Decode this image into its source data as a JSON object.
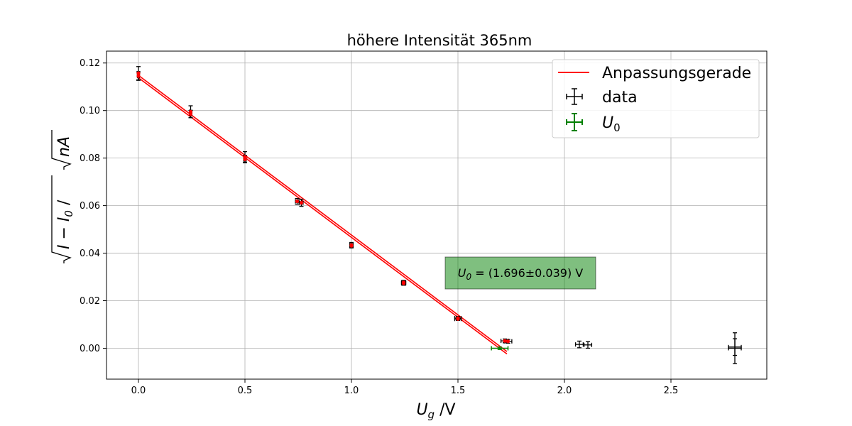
{
  "chart_data": {
    "type": "scatter",
    "title": "höhere Intensität 365nm",
    "xlabel_main": "U",
    "xlabel_sub": "g",
    "xlabel_unit": " /V",
    "ylabel": "√(I − I₀) /√nA",
    "ylabel_i": "I",
    "ylabel_minus": " − ",
    "ylabel_sub": "0",
    "ylabel_unit": " /",
    "ylabel_nA": "nA",
    "xlim": [
      -0.15,
      2.95
    ],
    "ylim": [
      -0.013,
      0.125
    ],
    "xticks": [
      0.0,
      0.5,
      1.0,
      1.5,
      2.0,
      2.5
    ],
    "xtick_labels": [
      "0.0",
      "0.5",
      "1.0",
      "1.5",
      "2.0",
      "2.5"
    ],
    "yticks": [
      0.0,
      0.02,
      0.04,
      0.06,
      0.08,
      0.1,
      0.12
    ],
    "ytick_labels": [
      "0.00",
      "0.02",
      "0.04",
      "0.06",
      "0.08",
      "0.10",
      "0.12"
    ],
    "grid": true,
    "legend_position": "top-right",
    "series": [
      {
        "name": "data",
        "kind": "errorbar",
        "color": "#000000",
        "points": [
          {
            "x": 0.0,
            "y": 0.1157,
            "xerr": 0.005,
            "yerr": 0.0028
          },
          {
            "x": 0.0,
            "y": 0.1145,
            "xerr": 0.005,
            "yerr": 0.0018
          },
          {
            "x": 0.245,
            "y": 0.0995,
            "xerr": 0.006,
            "yerr": 0.0025
          },
          {
            "x": 0.245,
            "y": 0.0985,
            "xerr": 0.006,
            "yerr": 0.0015
          },
          {
            "x": 0.5,
            "y": 0.0805,
            "xerr": 0.006,
            "yerr": 0.0022
          },
          {
            "x": 0.5,
            "y": 0.0795,
            "xerr": 0.006,
            "yerr": 0.0015
          },
          {
            "x": 0.745,
            "y": 0.0618,
            "xerr": 0.008,
            "yerr": 0.0012
          },
          {
            "x": 0.765,
            "y": 0.0612,
            "xerr": 0.008,
            "yerr": 0.0015
          },
          {
            "x": 1.0,
            "y": 0.0434,
            "xerr": 0.008,
            "yerr": 0.0011
          },
          {
            "x": 1.0,
            "y": 0.0431,
            "xerr": 0.008,
            "yerr": 0.0009
          },
          {
            "x": 1.245,
            "y": 0.0277,
            "xerr": 0.01,
            "yerr": 0.0009
          },
          {
            "x": 1.245,
            "y": 0.0273,
            "xerr": 0.01,
            "yerr": 0.0008
          },
          {
            "x": 1.5,
            "y": 0.0127,
            "xerr": 0.015,
            "yerr": 0.0007
          },
          {
            "x": 1.5,
            "y": 0.0123,
            "xerr": 0.015,
            "yerr": 0.0006
          },
          {
            "x": 1.72,
            "y": 0.0031,
            "xerr": 0.018,
            "yerr": 0.0008
          },
          {
            "x": 1.735,
            "y": 0.0029,
            "xerr": 0.018,
            "yerr": 0.0008
          },
          {
            "x": 2.07,
            "y": 0.0016,
            "xerr": 0.018,
            "yerr": 0.0014
          },
          {
            "x": 2.11,
            "y": 0.0014,
            "xerr": 0.018,
            "yerr": 0.0014
          },
          {
            "x": 2.8,
            "y": 0.0,
            "xerr": 0.03,
            "yerr": 0.0065
          },
          {
            "x": 2.8,
            "y": 0.0005,
            "xerr": 0.03,
            "yerr": 0.0035
          }
        ]
      },
      {
        "name": "fit points",
        "kind": "marker",
        "color": "#ff0000",
        "points": [
          {
            "x": 0.0,
            "y": 0.1157
          },
          {
            "x": 0.0,
            "y": 0.1145
          },
          {
            "x": 0.245,
            "y": 0.0995
          },
          {
            "x": 0.245,
            "y": 0.0985
          },
          {
            "x": 0.5,
            "y": 0.0805
          },
          {
            "x": 0.5,
            "y": 0.0795
          },
          {
            "x": 0.745,
            "y": 0.0618
          },
          {
            "x": 0.765,
            "y": 0.0612
          },
          {
            "x": 1.0,
            "y": 0.0434
          },
          {
            "x": 1.0,
            "y": 0.0431
          },
          {
            "x": 1.245,
            "y": 0.0277
          },
          {
            "x": 1.245,
            "y": 0.0273
          },
          {
            "x": 1.5,
            "y": 0.0127
          },
          {
            "x": 1.5,
            "y": 0.0123
          },
          {
            "x": 1.72,
            "y": 0.0031
          },
          {
            "x": 1.735,
            "y": 0.0029
          }
        ]
      },
      {
        "name": "Anpassungsgerade",
        "kind": "line",
        "color": "#ff0000",
        "lines": [
          {
            "x": [
              0.0,
              1.73
            ],
            "y": [
              0.1138,
              -0.0024
            ]
          },
          {
            "x": [
              0.0,
              1.73
            ],
            "y": [
              0.1148,
              -0.0014
            ]
          }
        ]
      },
      {
        "name": "U0",
        "kind": "errorbar",
        "color": "#008000",
        "points": [
          {
            "x": 1.696,
            "y": 0.0,
            "xerr": 0.039,
            "yerr": 0.0005
          }
        ]
      }
    ],
    "legend": [
      {
        "label": "Anpassungsgerade",
        "kind": "line",
        "color": "#ff0000"
      },
      {
        "label": "data",
        "kind": "errorbar",
        "color": "#000000"
      },
      {
        "label": "U",
        "sub": "0",
        "kind": "errorbar",
        "color": "#008000"
      }
    ],
    "annotation": {
      "text_main": "U",
      "text_sub": "0",
      "text_rest": " = (1.696±0.039) V",
      "x": 1.84,
      "y": 0.0317,
      "box_color": "#008000"
    }
  }
}
